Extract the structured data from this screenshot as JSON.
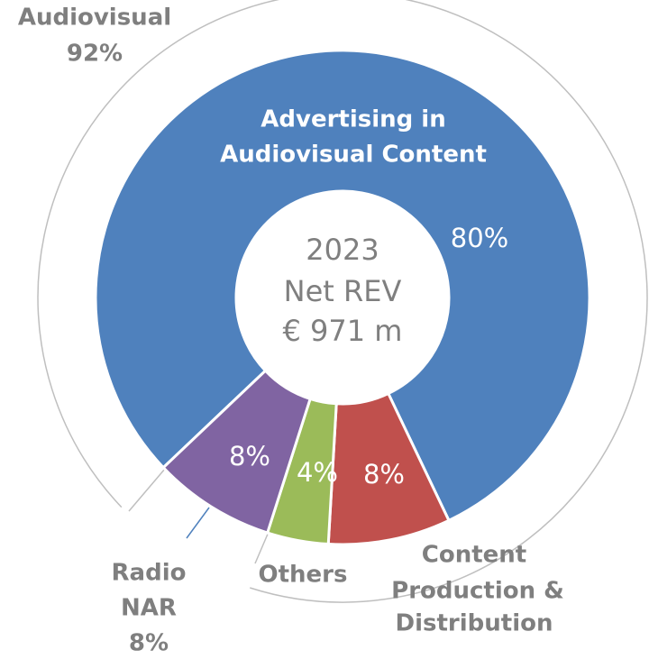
{
  "chart_data": {
    "type": "donut",
    "labels": [
      [
        "Advertising in",
        "Audiovisual Content"
      ],
      [
        "Content",
        "Production &",
        "Distribution"
      ],
      [
        "Others"
      ],
      [
        "Radio",
        "NAR"
      ]
    ],
    "values": [
      80,
      8,
      4,
      8
    ],
    "value_labels": [
      "80%",
      "8%",
      "4%",
      "8%"
    ],
    "colors": [
      "#4f81bd",
      "#c0504d",
      "#9bbb59",
      "#8064a2"
    ],
    "ring": {
      "name": "Audiovisual",
      "value": 92,
      "value_label": "92%"
    },
    "center_text": [
      "2023",
      "Net REV",
      "€ 971 m"
    ]
  }
}
